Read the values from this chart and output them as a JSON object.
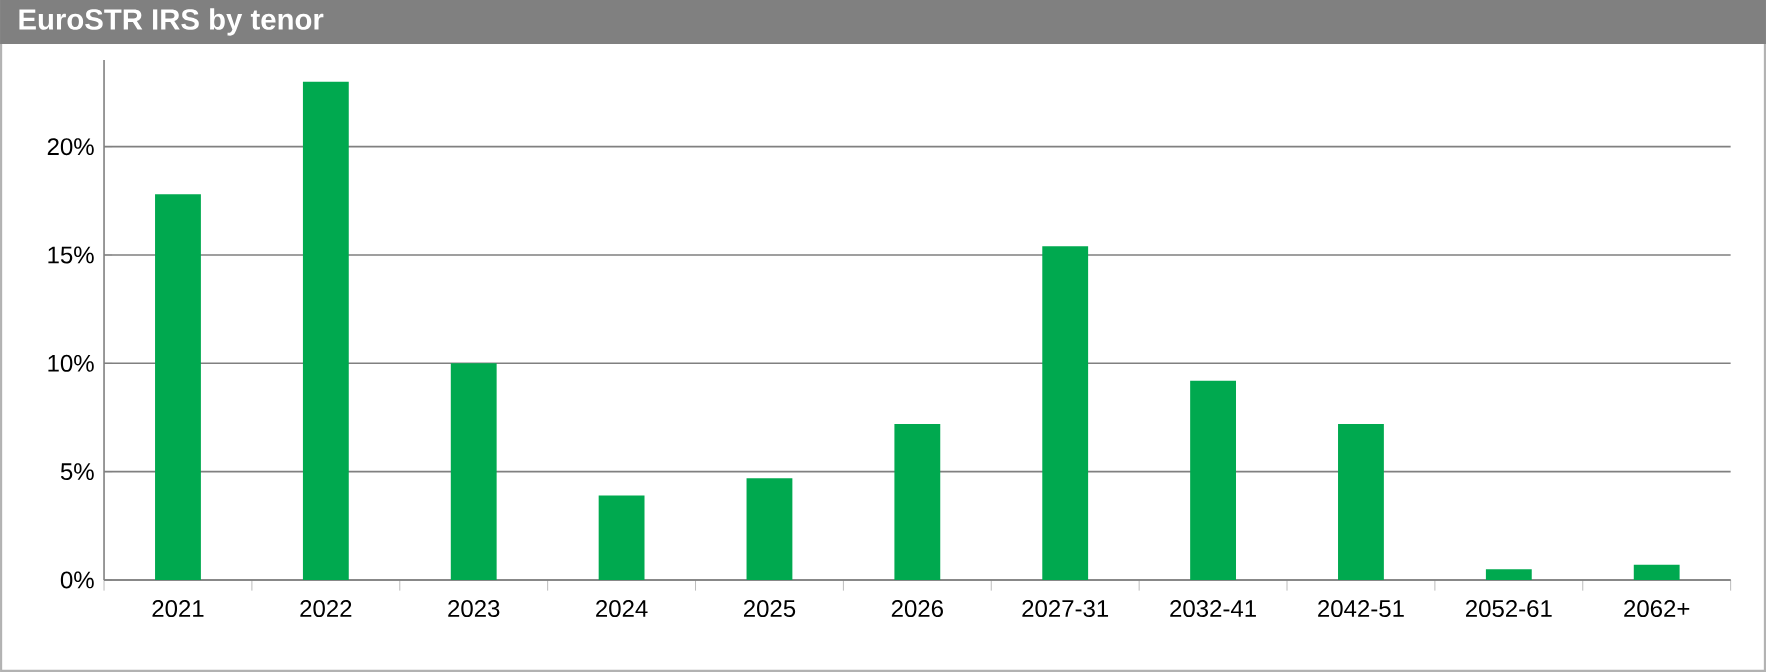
{
  "chart_data": {
    "type": "bar",
    "title": "EuroSTR IRS by tenor",
    "categories": [
      "2021",
      "2022",
      "2023",
      "2024",
      "2025",
      "2026",
      "2027-31",
      "2032-41",
      "2042-51",
      "2052-61",
      "2062+"
    ],
    "values": [
      17.8,
      23.0,
      10.0,
      3.9,
      4.7,
      7.2,
      15.4,
      9.2,
      7.2,
      0.5,
      0.7
    ],
    "color": "#00a94f",
    "ylim": [
      0,
      24
    ],
    "yticks": [
      {
        "value": 0,
        "label": "0%"
      },
      {
        "value": 5,
        "label": "5%"
      },
      {
        "value": 10,
        "label": "10%"
      },
      {
        "value": 15,
        "label": "15%"
      },
      {
        "value": 20,
        "label": "20%"
      }
    ],
    "grid": "y"
  }
}
